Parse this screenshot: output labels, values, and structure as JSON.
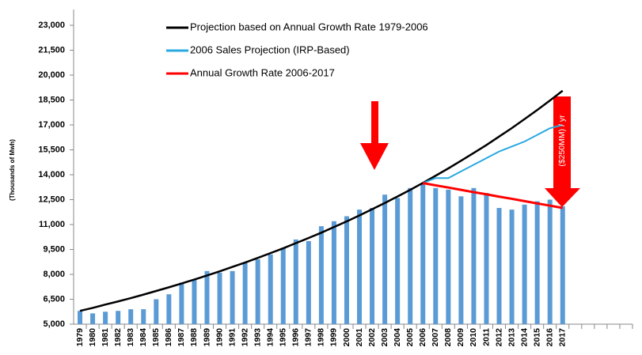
{
  "chart_data": {
    "type": "bar",
    "y_label": "(Thousands of Mwh)",
    "annotation": "($250MM) / yr",
    "categories": [
      "1979",
      "1980",
      "1981",
      "1982",
      "1983",
      "1984",
      "1985",
      "1986",
      "1987",
      "1988",
      "1989",
      "1990",
      "1991",
      "1992",
      "1993",
      "1994",
      "1995",
      "1996",
      "1997",
      "1998",
      "1999",
      "2000",
      "2001",
      "2002",
      "2003",
      "2004",
      "2005",
      "2006",
      "2007",
      "2008",
      "2009",
      "2010",
      "2011",
      "2012",
      "2013",
      "2014",
      "2015",
      "2016",
      "2017",
      null,
      null,
      null,
      null,
      null
    ],
    "ylim": [
      5000,
      23000
    ],
    "yticks": [
      {
        "value": 5000,
        "label": "5,000"
      },
      {
        "value": 6500,
        "label": "6,500"
      },
      {
        "value": 8000,
        "label": "8,000"
      },
      {
        "value": 9500,
        "label": "9,500"
      },
      {
        "value": 11000,
        "label": "11,000"
      },
      {
        "value": 12500,
        "label": "12,500"
      },
      {
        "value": 14000,
        "label": "14,000"
      },
      {
        "value": 15500,
        "label": "15,500"
      },
      {
        "value": 17000,
        "label": "17,000"
      },
      {
        "value": 18500,
        "label": "18,500"
      },
      {
        "value": 20000,
        "label": "20,000"
      },
      {
        "value": 21500,
        "label": "21,500"
      },
      {
        "value": 23000,
        "label": "23,000"
      }
    ],
    "series": [
      {
        "type": "bar",
        "color": "#5b9bd5",
        "values": [
          5800,
          5650,
          5750,
          5800,
          5900,
          5900,
          6500,
          6800,
          7500,
          7700,
          8200,
          8100,
          8200,
          8700,
          8900,
          9200,
          9600,
          10100,
          10000,
          10900,
          11200,
          11500,
          11900,
          12000,
          12800,
          12600,
          13200,
          13400,
          13200,
          13100,
          12700,
          13200,
          12900,
          12000,
          11900,
          12200,
          12400,
          12500,
          12100,
          null,
          null,
          null,
          null,
          null
        ]
      },
      {
        "type": "line",
        "name": "Projection based on Annual Growth Rate 1979-2006",
        "color": "#000000",
        "values": [
          5800,
          5980,
          6180,
          6370,
          6570,
          6780,
          7000,
          7220,
          7450,
          7690,
          7930,
          8180,
          8450,
          8710,
          8990,
          9280,
          9570,
          9880,
          10190,
          10510,
          10850,
          11190,
          11550,
          11920,
          12300,
          12690,
          13090,
          13510,
          13940,
          14380,
          14840,
          15310,
          15790,
          16300,
          16810,
          17350,
          17900,
          18470,
          19060,
          null,
          null,
          null,
          null,
          null
        ]
      },
      {
        "type": "line",
        "name": "2006 Sales Projection (IRP-Based)",
        "color": "#29a8e0",
        "values": [
          null,
          null,
          null,
          null,
          null,
          null,
          null,
          null,
          null,
          null,
          null,
          null,
          null,
          null,
          null,
          null,
          null,
          null,
          null,
          null,
          null,
          null,
          null,
          null,
          null,
          null,
          null,
          13500,
          13800,
          13800,
          14200,
          14600,
          15000,
          15400,
          15700,
          16000,
          16400,
          16800,
          17000,
          null,
          null,
          null,
          null,
          null
        ]
      },
      {
        "type": "line",
        "name": "Annual Growth Rate 2006-2017",
        "color": "#ff0000",
        "values": [
          null,
          null,
          null,
          null,
          null,
          null,
          null,
          null,
          null,
          null,
          null,
          null,
          null,
          null,
          null,
          null,
          null,
          null,
          null,
          null,
          null,
          null,
          null,
          null,
          null,
          null,
          null,
          13500,
          13360,
          13230,
          13090,
          12950,
          12820,
          12680,
          12550,
          12410,
          12270,
          12140,
          12000,
          null,
          null,
          null,
          null,
          null
        ]
      }
    ]
  }
}
